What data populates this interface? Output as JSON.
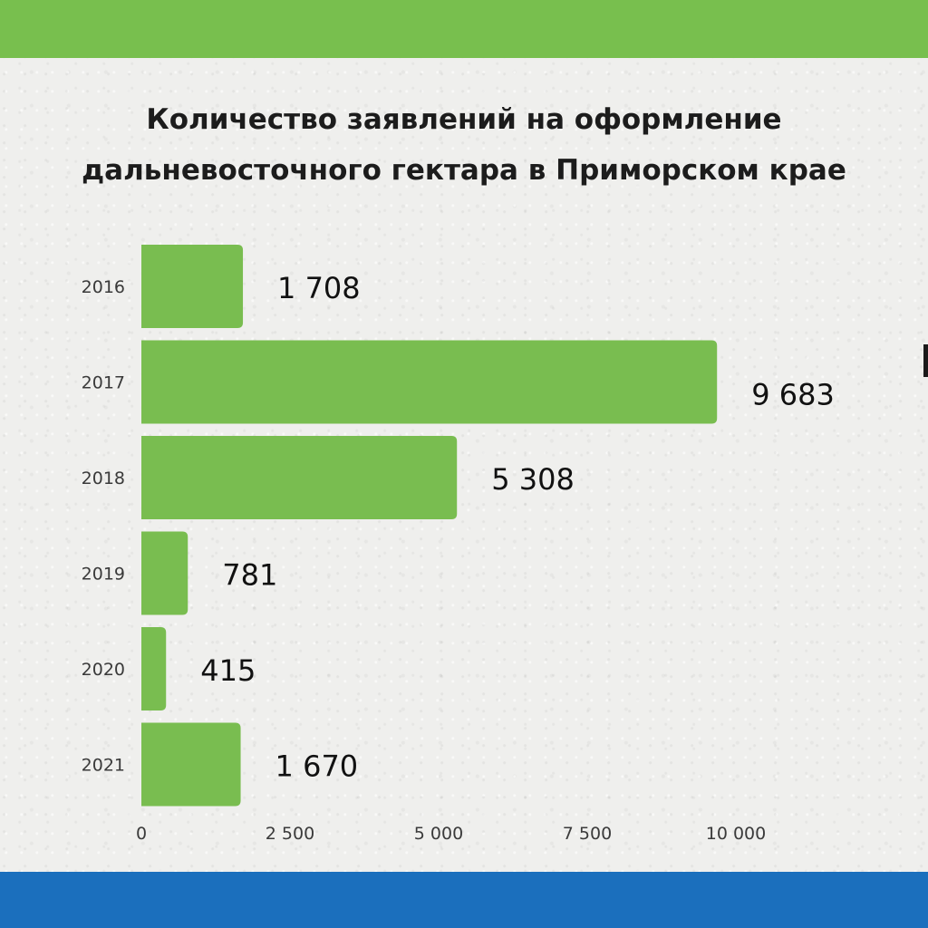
{
  "colors": {
    "top_bar": "#78bf4e",
    "bottom_bar": "#1b6fbd",
    "bar": "#79bd50",
    "label_text": "#111111",
    "tick_text": "#3a3a3a"
  },
  "chart_data": {
    "type": "bar",
    "orientation": "horizontal",
    "title_line1": "Количество заявлений на оформление",
    "title_line2": "дальневосточного гектара в Приморском крае",
    "categories": [
      "2016",
      "2017",
      "2018",
      "2019",
      "2020",
      "2021"
    ],
    "values": [
      1708,
      9683,
      5308,
      781,
      415,
      1670
    ],
    "value_labels": [
      "1 708",
      "9 683",
      "5 308",
      "781",
      "415",
      "1 670"
    ],
    "xlim": [
      0,
      10000
    ],
    "x_ticks": [
      0,
      2500,
      5000,
      7500,
      10000
    ],
    "x_tick_labels": [
      "0",
      "2 500",
      "5 000",
      "7 500",
      "10 000"
    ],
    "grid": false,
    "legend": "none"
  }
}
